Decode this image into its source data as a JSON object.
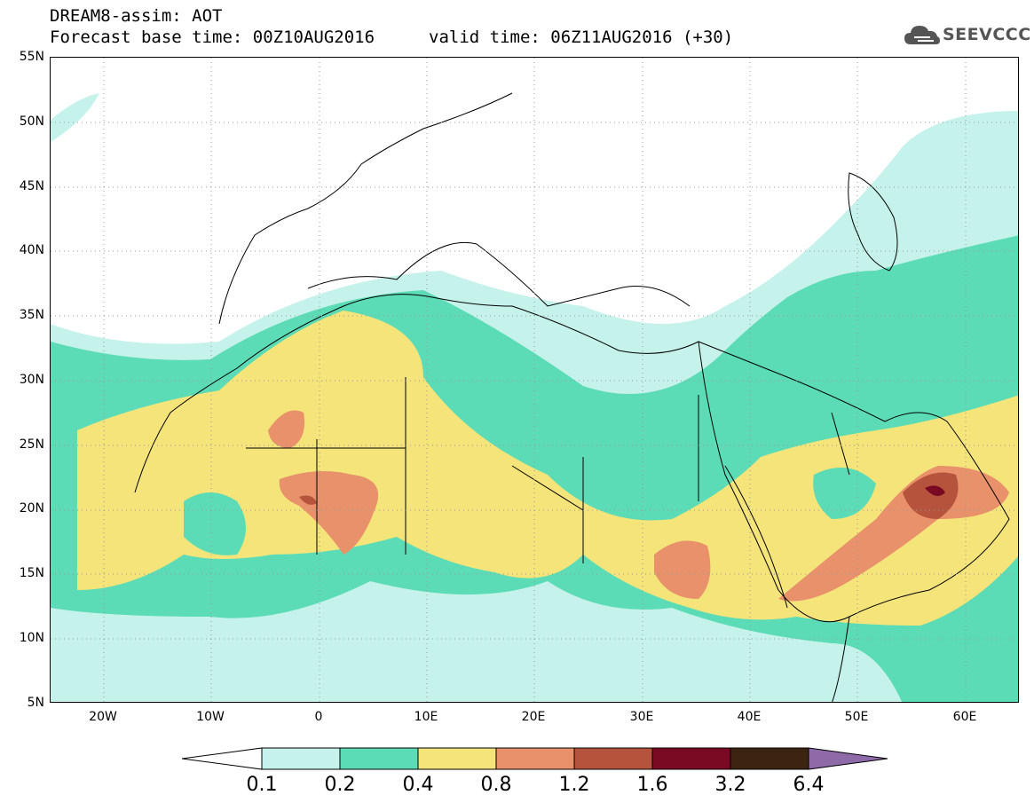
{
  "header": {
    "model_line": "DREAM8-assim: AOT",
    "base_time": "Forecast base time: 00Z10AUG2016",
    "valid_time": "valid time: 06Z11AUG2016 (+30)",
    "logo_text": "SEEVCCC"
  },
  "map": {
    "lat_labels": [
      "55N",
      "50N",
      "45N",
      "40N",
      "35N",
      "30N",
      "25N",
      "20N",
      "15N",
      "10N",
      "5N"
    ],
    "lon_labels": [
      "20W",
      "10W",
      "0",
      "10E",
      "20E",
      "30E",
      "40E",
      "50E",
      "60E"
    ],
    "lat_range": [
      5,
      55
    ],
    "lon_range": [
      -25,
      65
    ]
  },
  "colorbar": {
    "labels": [
      "0.1",
      "0.2",
      "0.4",
      "0.8",
      "1.2",
      "1.6",
      "3.2",
      "6.4"
    ],
    "colors": [
      "#c5f2ea",
      "#5bdcb6",
      "#f4e47a",
      "#e8916a",
      "#b5533c",
      "#7a0a24",
      "#3b2410",
      "#8e6aa8"
    ]
  },
  "colors": {
    "c01": "#c5f2ea",
    "c02": "#5bdcb6",
    "c04": "#f4e47a",
    "c08": "#e8916a",
    "c12": "#b5533c",
    "c16": "#7a0a24"
  }
}
